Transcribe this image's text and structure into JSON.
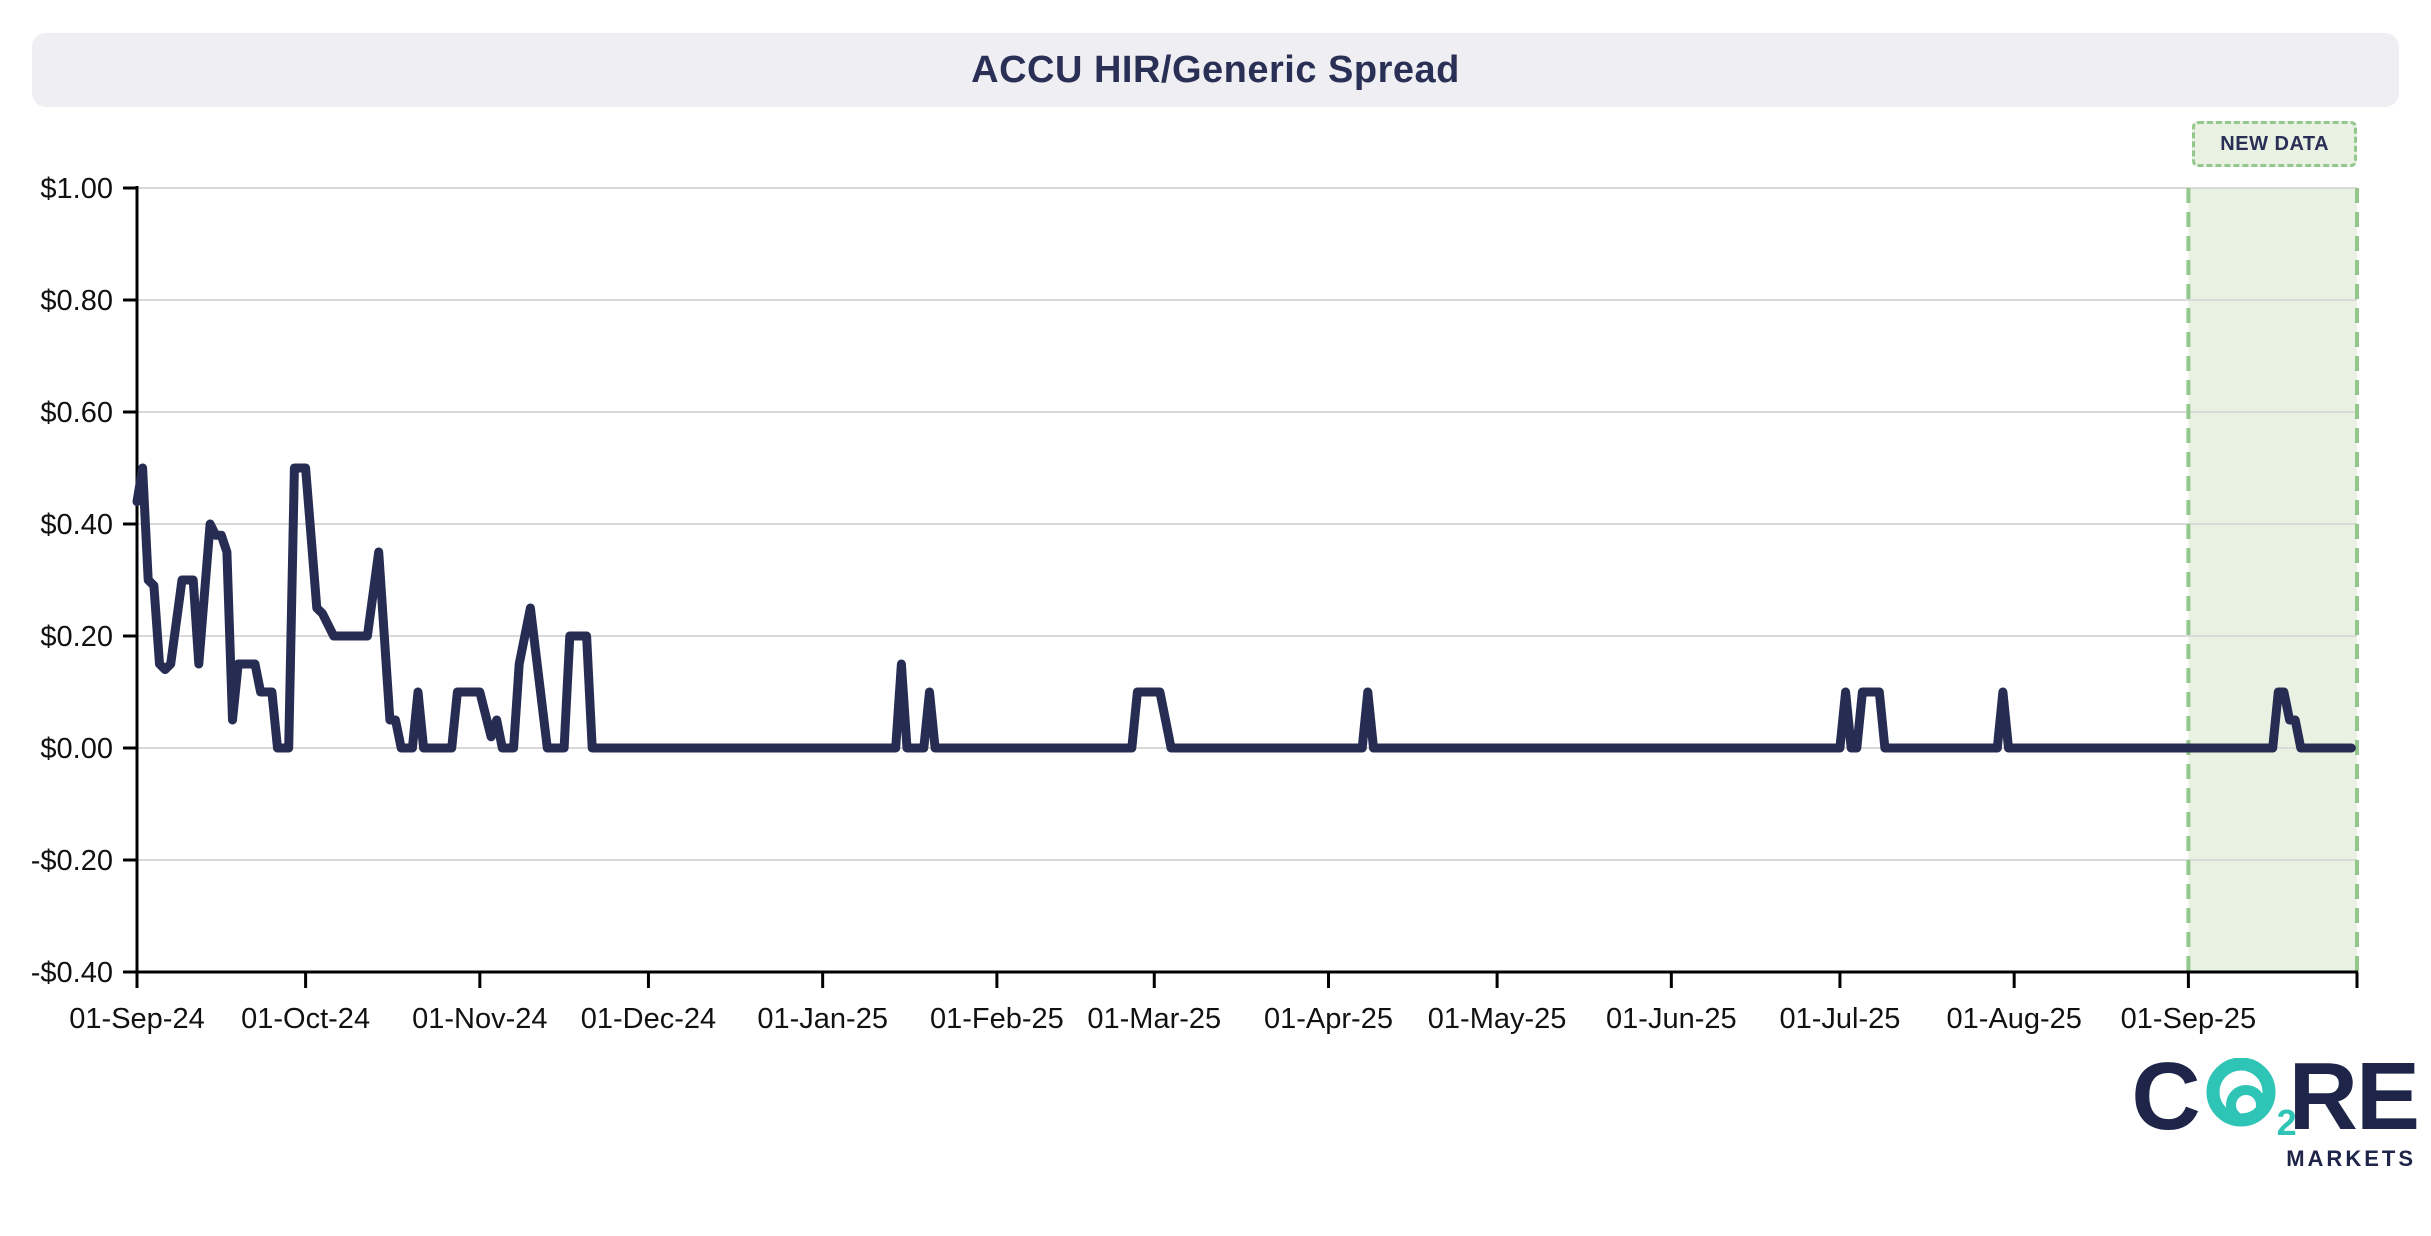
{
  "header": {
    "title": "ACCU HIR/Generic Spread"
  },
  "colors": {
    "navy": "#1F2549",
    "teal": "#2EC4B6",
    "title_navy": "#2A2F55",
    "titlebar_bg": "#EFEEF3",
    "grid": "#D9D9D9",
    "axis": "#000000",
    "tick_label": "#111111",
    "line": "#272D52",
    "region_fill": "#E9F1E3",
    "region_border": "#94C78C"
  },
  "chart_data": {
    "type": "line",
    "title": "ACCU HIR/Generic Spread",
    "xlabel": "",
    "ylabel": "",
    "grid": true,
    "legend_position": "none",
    "x_axis": {
      "start": "2024-09-01",
      "end": "2025-10-01",
      "tick_dates": [
        "2024-09-01",
        "2024-10-01",
        "2024-11-01",
        "2024-12-01",
        "2025-01-01",
        "2025-02-01",
        "2025-03-01",
        "2025-04-01",
        "2025-05-01",
        "2025-06-01",
        "2025-07-01",
        "2025-08-01",
        "2025-09-01",
        "2025-10-01"
      ],
      "tick_labels": [
        "01-Sep-24",
        "01-Oct-24",
        "01-Nov-24",
        "01-Dec-24",
        "01-Jan-25",
        "01-Feb-25",
        "01-Mar-25",
        "01-Apr-25",
        "01-May-25",
        "01-Jun-25",
        "01-Jul-25",
        "01-Aug-25",
        "01-Sep-25",
        ""
      ]
    },
    "y_axis": {
      "min": -0.4,
      "max": 1.0,
      "step": 0.2,
      "tick_values": [
        1.0,
        0.8,
        0.6,
        0.4,
        0.2,
        0.0,
        -0.2,
        -0.4
      ],
      "tick_labels": [
        "$1.00",
        "$0.80",
        "$0.60",
        "$0.40",
        "$0.20",
        "$0.00",
        "-$0.20",
        "-$0.40"
      ],
      "format": "currency-USD"
    },
    "series": [
      {
        "name": "ACCU HIR/Generic Spread",
        "color": "#272D52",
        "points": [
          [
            "2024-09-01",
            0.44
          ],
          [
            "2024-09-02",
            0.5
          ],
          [
            "2024-09-03",
            0.3
          ],
          [
            "2024-09-04",
            0.29
          ],
          [
            "2024-09-05",
            0.15
          ],
          [
            "2024-09-06",
            0.14
          ],
          [
            "2024-09-07",
            0.15
          ],
          [
            "2024-09-09",
            0.3
          ],
          [
            "2024-09-11",
            0.3
          ],
          [
            "2024-09-12",
            0.15
          ],
          [
            "2024-09-14",
            0.4
          ],
          [
            "2024-09-15",
            0.38
          ],
          [
            "2024-09-16",
            0.38
          ],
          [
            "2024-09-17",
            0.35
          ],
          [
            "2024-09-18",
            0.05
          ],
          [
            "2024-09-19",
            0.15
          ],
          [
            "2024-09-22",
            0.15
          ],
          [
            "2024-09-23",
            0.1
          ],
          [
            "2024-09-25",
            0.1
          ],
          [
            "2024-09-26",
            0.0
          ],
          [
            "2024-09-28",
            0.0
          ],
          [
            "2024-09-29",
            0.5
          ],
          [
            "2024-10-01",
            0.5
          ],
          [
            "2024-10-03",
            0.25
          ],
          [
            "2024-10-04",
            0.24
          ],
          [
            "2024-10-06",
            0.2
          ],
          [
            "2024-10-12",
            0.2
          ],
          [
            "2024-10-14",
            0.35
          ],
          [
            "2024-10-16",
            0.05
          ],
          [
            "2024-10-17",
            0.05
          ],
          [
            "2024-10-18",
            0.0
          ],
          [
            "2024-10-20",
            0.0
          ],
          [
            "2024-10-21",
            0.1
          ],
          [
            "2024-10-22",
            0.0
          ],
          [
            "2024-10-27",
            0.0
          ],
          [
            "2024-10-28",
            0.1
          ],
          [
            "2024-11-01",
            0.1
          ],
          [
            "2024-11-03",
            0.02
          ],
          [
            "2024-11-04",
            0.05
          ],
          [
            "2024-11-05",
            0.0
          ],
          [
            "2024-11-07",
            0.0
          ],
          [
            "2024-11-08",
            0.15
          ],
          [
            "2024-11-10",
            0.25
          ],
          [
            "2024-11-13",
            0.0
          ],
          [
            "2024-11-16",
            0.0
          ],
          [
            "2024-11-17",
            0.2
          ],
          [
            "2024-11-20",
            0.2
          ],
          [
            "2024-11-21",
            0.0
          ],
          [
            "2025-01-14",
            0.0
          ],
          [
            "2025-01-15",
            0.15
          ],
          [
            "2025-01-16",
            0.0
          ],
          [
            "2025-01-19",
            0.0
          ],
          [
            "2025-01-20",
            0.1
          ],
          [
            "2025-01-21",
            0.0
          ],
          [
            "2025-02-25",
            0.0
          ],
          [
            "2025-02-26",
            0.1
          ],
          [
            "2025-03-02",
            0.1
          ],
          [
            "2025-03-04",
            0.0
          ],
          [
            "2025-04-07",
            0.0
          ],
          [
            "2025-04-08",
            0.1
          ],
          [
            "2025-04-09",
            0.0
          ],
          [
            "2025-07-01",
            0.0
          ],
          [
            "2025-07-02",
            0.1
          ],
          [
            "2025-07-03",
            0.0
          ],
          [
            "2025-07-04",
            0.0
          ],
          [
            "2025-07-05",
            0.1
          ],
          [
            "2025-07-08",
            0.1
          ],
          [
            "2025-07-09",
            0.0
          ],
          [
            "2025-07-29",
            0.0
          ],
          [
            "2025-07-30",
            0.1
          ],
          [
            "2025-07-31",
            0.0
          ],
          [
            "2025-09-16",
            0.0
          ],
          [
            "2025-09-17",
            0.1
          ],
          [
            "2025-09-18",
            0.1
          ],
          [
            "2025-09-19",
            0.05
          ],
          [
            "2025-09-20",
            0.05
          ],
          [
            "2025-09-21",
            0.0
          ],
          [
            "2025-09-30",
            0.0
          ]
        ]
      }
    ],
    "annotations": {
      "new_data_region": {
        "label": "NEW DATA",
        "from": "2025-09-01",
        "to": "2025-10-01",
        "fill": "#E9F1E3",
        "border_color": "#94C78C",
        "label_color": "#2A2F55"
      }
    }
  },
  "logo": {
    "c": "C",
    "sub": "2",
    "re": "RE",
    "markets": "MARKETS"
  }
}
